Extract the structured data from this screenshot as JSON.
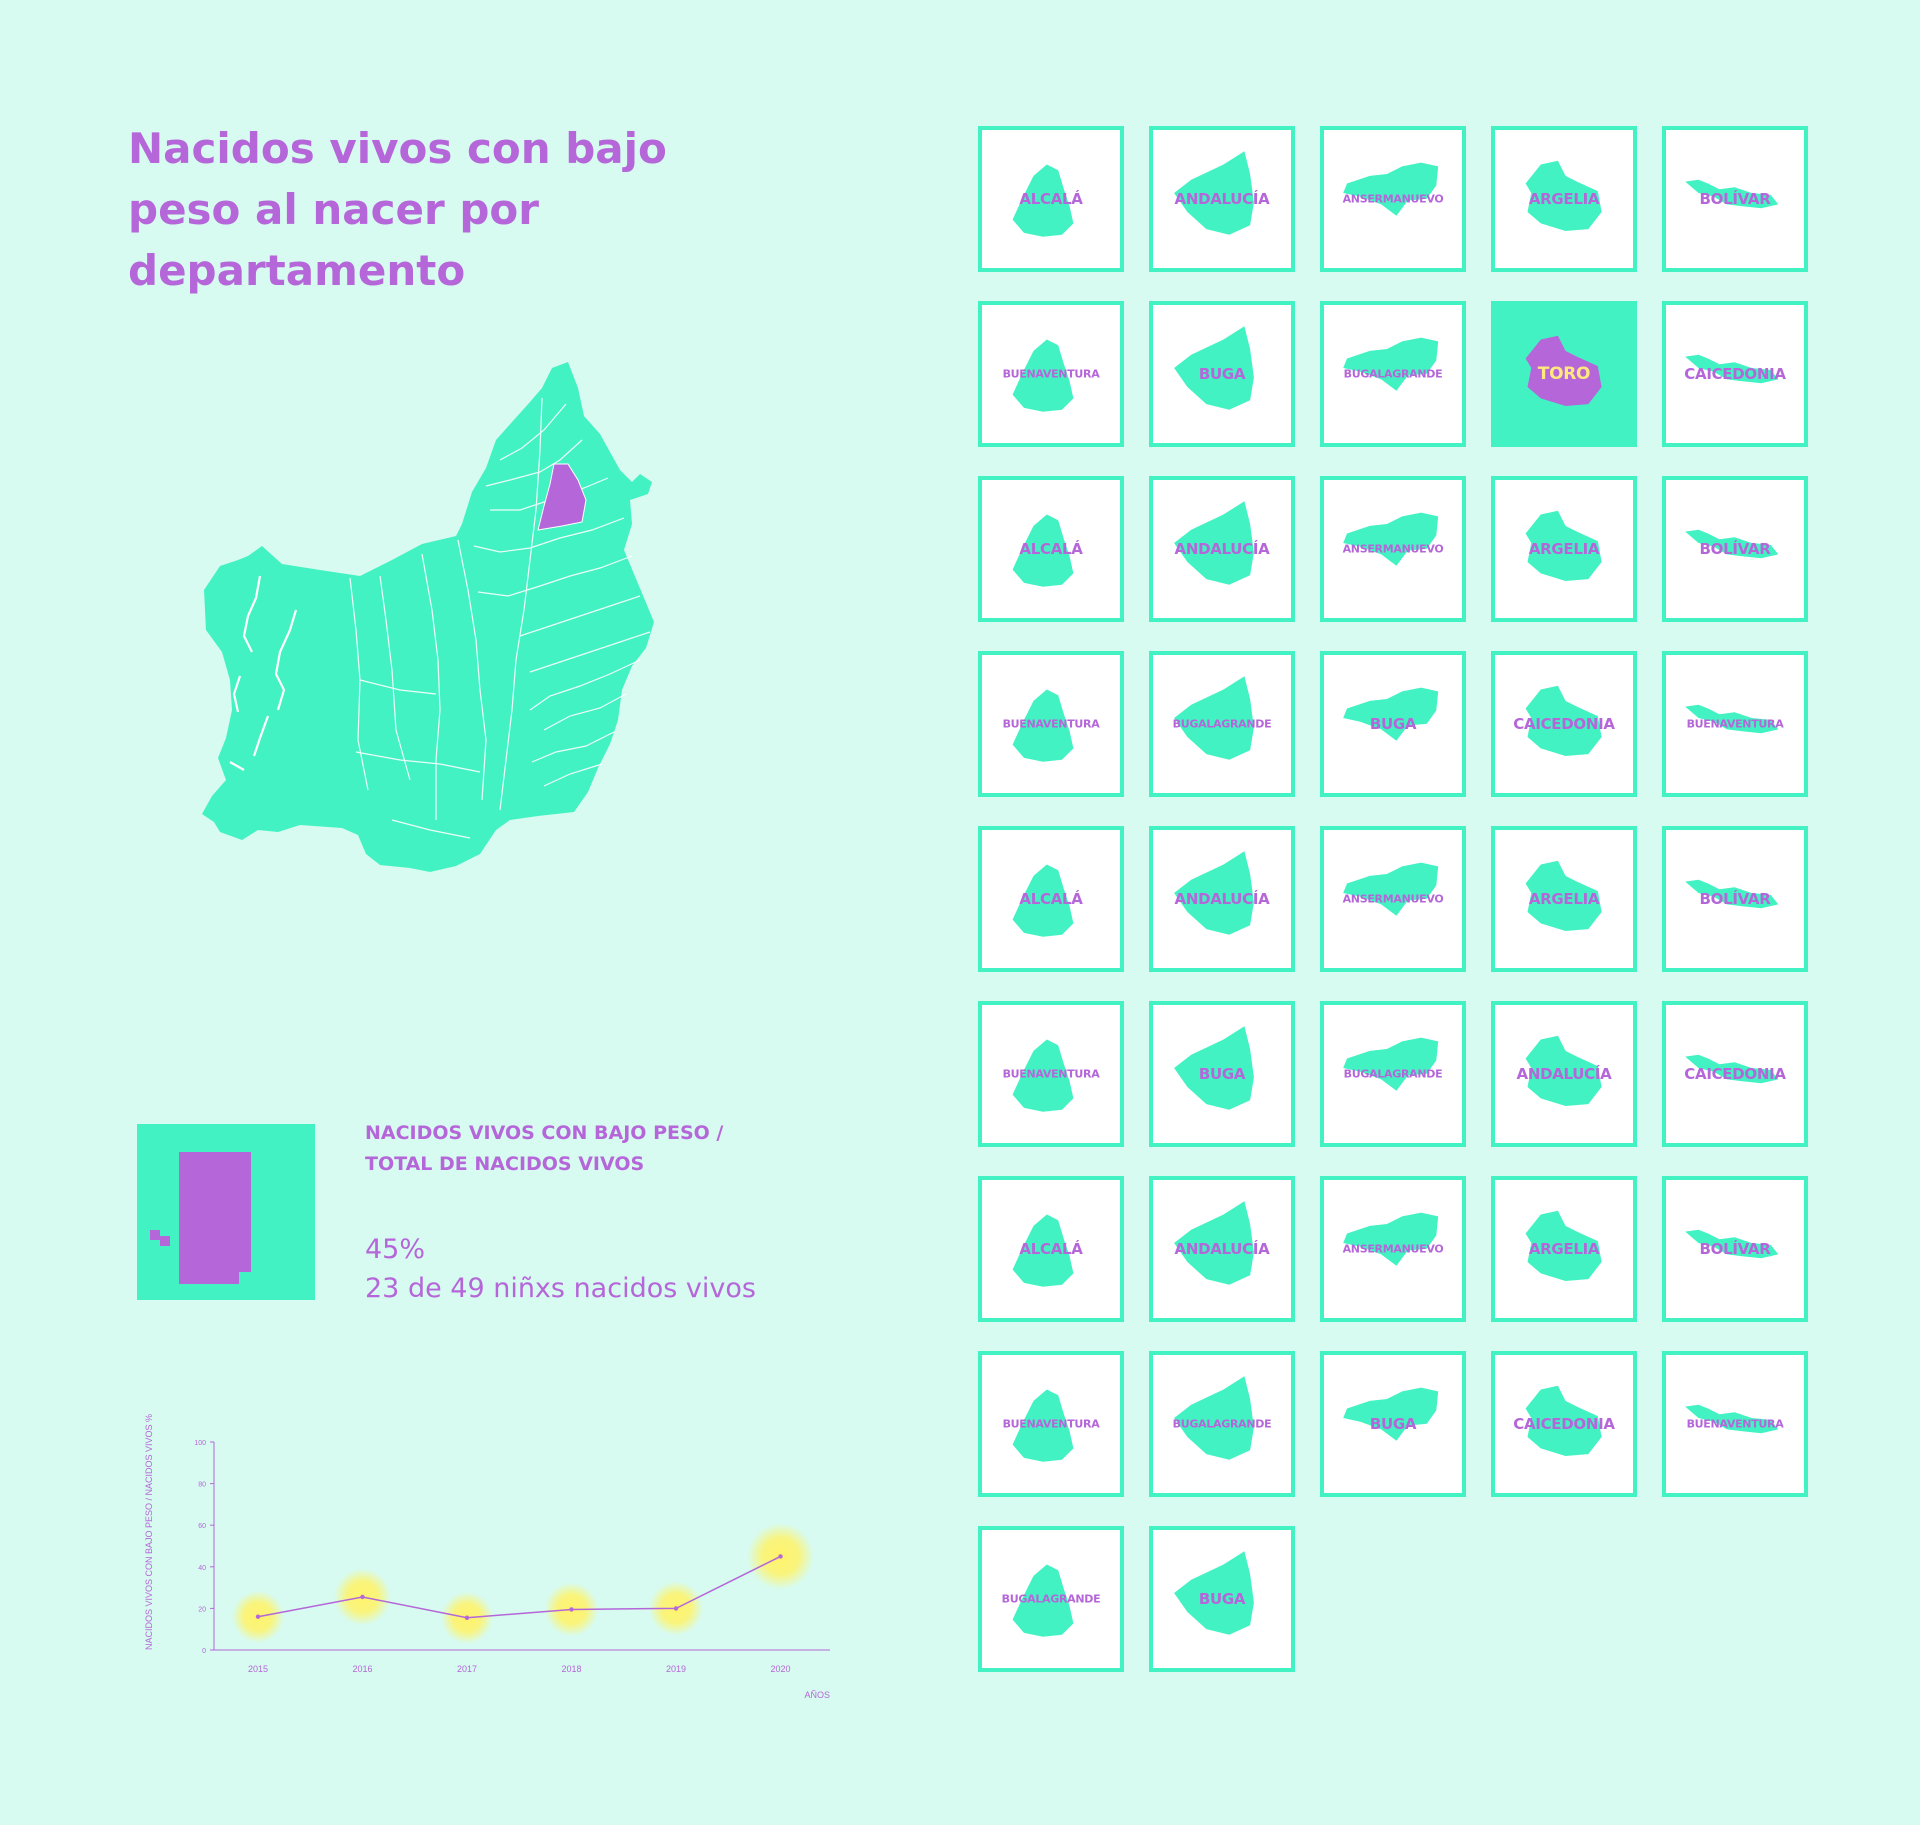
{
  "title": "Nacidos vivos con bajo peso al nacer por departamento",
  "ratio": {
    "label": "NACIDOS VIVOS CON BAJO PESO / TOTAL DE NACIDOS VIVOS",
    "percent": "45%",
    "count_text": "23 de 49 niñxs nacidos vivos",
    "value": 0.45
  },
  "chart_data": {
    "type": "line",
    "x": [
      2015,
      2016,
      2017,
      2018,
      2019,
      2020
    ],
    "categories": [
      "2015",
      "2016",
      "2017",
      "2018",
      "2019",
      "2020"
    ],
    "values": [
      16,
      25.5,
      15.5,
      19.5,
      20,
      45
    ],
    "xlabel": "AÑOS",
    "ylabel": "NACIDOS VIVOS CON BAJO PESO / NACIDOS VIVOS %",
    "ylim": [
      0,
      100
    ],
    "yticks": [
      "0",
      "20",
      "40",
      "60",
      "80",
      "100"
    ],
    "grid": false
  },
  "municipios": [
    {
      "name": "ALCALÁ"
    },
    {
      "name": "ANDALUCÍA"
    },
    {
      "name": "ANSERMANUEVO"
    },
    {
      "name": "ARGELIA"
    },
    {
      "name": "BOLÍVAR"
    },
    {
      "name": "BUENAVENTURA"
    },
    {
      "name": "BUGA"
    },
    {
      "name": "BUGALAGRANDE"
    },
    {
      "name": "TORO",
      "selected": true
    },
    {
      "name": "CAICEDONIA"
    },
    {
      "name": "ALCALÁ"
    },
    {
      "name": "ANDALUCÍA"
    },
    {
      "name": "ANSERMANUEVO"
    },
    {
      "name": "ARGELIA"
    },
    {
      "name": "BOLÍVAR"
    },
    {
      "name": "BUENAVENTURA"
    },
    {
      "name": "BUGALAGRANDE"
    },
    {
      "name": "BUGA"
    },
    {
      "name": "CAICEDONIA"
    },
    {
      "name": "BUENAVENTURA"
    },
    {
      "name": "ALCALÁ"
    },
    {
      "name": "ANDALUCÍA"
    },
    {
      "name": "ANSERMANUEVO"
    },
    {
      "name": "ARGELIA"
    },
    {
      "name": "BOLÍVAR"
    },
    {
      "name": "BUENAVENTURA"
    },
    {
      "name": "BUGA"
    },
    {
      "name": "BUGALAGRANDE"
    },
    {
      "name": "ANDALUCÍA"
    },
    {
      "name": "CAICEDONIA"
    },
    {
      "name": "ALCALÁ"
    },
    {
      "name": "ANDALUCÍA"
    },
    {
      "name": "ANSERMANUEVO"
    },
    {
      "name": "ARGELIA"
    },
    {
      "name": "BOLÍVAR"
    },
    {
      "name": "BUENAVENTURA"
    },
    {
      "name": "BUGALAGRANDE"
    },
    {
      "name": "BUGA"
    },
    {
      "name": "CAICEDONIA"
    },
    {
      "name": "BUENAVENTURA"
    },
    {
      "name": "BUGALAGRANDE"
    },
    {
      "name": "BUGA"
    }
  ],
  "colors": {
    "background": "#d7fbf0",
    "mint": "#43f2c3",
    "purple": "#b566d9",
    "yellow": "#ffe87c",
    "glow": "#fff36a"
  }
}
